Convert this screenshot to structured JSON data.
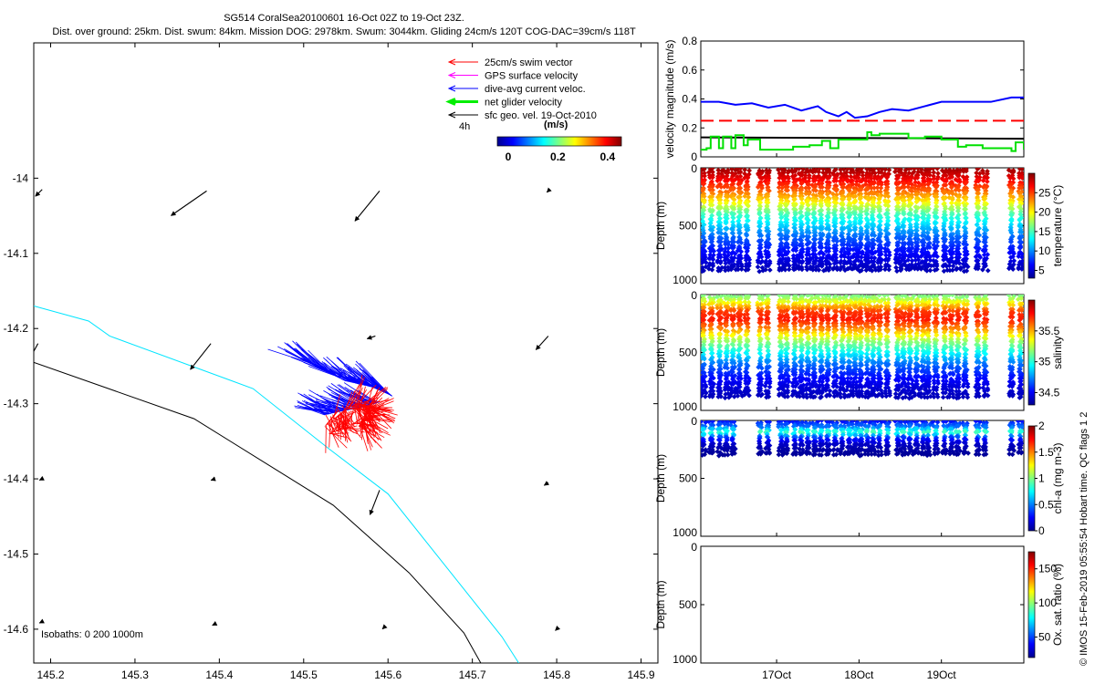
{
  "header": {
    "title": "SG514 CoralSea20100601 16-Oct 02Z to 19-Oct 23Z.",
    "subtitle": "Dist. over ground: 25km. Dist. swum: 84km. Mission DOG: 2978km. Swum: 3044km. Gliding 24cm/s 120T COG-DAC=39cm/s 118T"
  },
  "copyright": "© IMOS 15-Feb-2019 05:55:54 Hobart time. QC flags 1  2",
  "map": {
    "legend": [
      {
        "label": "25cm/s swim vector",
        "color": "#ff0000"
      },
      {
        "label": "GPS surface velocity",
        "color": "#ff00ff"
      },
      {
        "label": "dive-avg current veloc.",
        "color": "#0000ff"
      },
      {
        "label": "net glider velocity",
        "color": "#00ee00"
      },
      {
        "label": "sfc geo. vel. 19-Oct-2010",
        "color": "#000000"
      }
    ],
    "time_label": "4h",
    "colorbar": {
      "unit": "(m/s)",
      "ticks": [
        0,
        0.2,
        0.4
      ],
      "tick_labels": [
        "0",
        "0.2",
        "0.4"
      ],
      "range": [
        0,
        0.5
      ]
    },
    "isobaths_label": "Isobaths: 0   200  1000m",
    "isobath_colors": {
      "200": "#00e5ff",
      "1000": "#000000"
    },
    "xlim": [
      145.18,
      145.92
    ],
    "ylim": [
      -14.645,
      -13.82
    ],
    "xticks": [
      145.2,
      145.3,
      145.4,
      145.5,
      145.6,
      145.7,
      145.8,
      145.9
    ],
    "xtick_labels": [
      "145.2",
      "145.3",
      "145.4",
      "145.5",
      "145.6",
      "145.7",
      "145.8",
      "145.9"
    ],
    "yticks": [
      -14.0,
      -14.1,
      -14.2,
      -14.3,
      -14.4,
      -14.5,
      -14.6
    ],
    "ytick_labels": [
      "-14",
      "-14.1",
      "-14.2",
      "-14.3",
      "-14.4",
      "-14.5",
      "-14.6"
    ],
    "isobath_200m": [
      [
        145.18,
        -14.17
      ],
      [
        145.245,
        -14.19
      ],
      [
        145.27,
        -14.21
      ],
      [
        145.44,
        -14.28
      ],
      [
        145.53,
        -14.36
      ],
      [
        145.6,
        -14.42
      ],
      [
        145.735,
        -14.61
      ],
      [
        145.755,
        -14.645
      ]
    ],
    "isobath_1000m": [
      [
        145.18,
        -14.245
      ],
      [
        145.37,
        -14.32
      ],
      [
        145.535,
        -14.435
      ],
      [
        145.625,
        -14.525
      ],
      [
        145.69,
        -14.605
      ],
      [
        145.71,
        -14.645
      ]
    ],
    "geo_vectors": [
      {
        "x": 145.19,
        "y": -14.015,
        "u": -0.05,
        "v": -0.05
      },
      {
        "x": 145.385,
        "y": -14.017,
        "u": -0.26,
        "v": -0.18
      },
      {
        "x": 145.59,
        "y": -14.017,
        "u": -0.18,
        "v": -0.22
      },
      {
        "x": 145.79,
        "y": -14.017,
        "u": -0.01,
        "v": -0.01
      },
      {
        "x": 145.185,
        "y": -14.22,
        "u": -0.12,
        "v": -0.22
      },
      {
        "x": 145.39,
        "y": -14.22,
        "u": -0.15,
        "v": -0.19
      },
      {
        "x": 145.585,
        "y": -14.21,
        "u": -0.06,
        "v": -0.02
      },
      {
        "x": 145.79,
        "y": -14.21,
        "u": -0.09,
        "v": -0.1
      },
      {
        "x": 145.19,
        "y": -14.4,
        "u": -0.02,
        "v": -0.01
      },
      {
        "x": 145.395,
        "y": -14.4,
        "u": -0.03,
        "v": -0.01
      },
      {
        "x": 145.59,
        "y": -14.415,
        "u": -0.07,
        "v": -0.18
      },
      {
        "x": 145.79,
        "y": -14.405,
        "u": -0.03,
        "v": -0.02
      },
      {
        "x": 145.19,
        "y": -14.59,
        "u": -0.02,
        "v": -0.01
      },
      {
        "x": 145.395,
        "y": -14.593,
        "u": -0.02,
        "v": -0.01
      },
      {
        "x": 145.595,
        "y": -14.598,
        "u": -0.01,
        "v": -0.01
      },
      {
        "x": 145.8,
        "y": -14.6,
        "u": -0.01,
        "v": -0.01
      }
    ],
    "track_upper": [
      [
        145.505,
        -14.245
      ],
      [
        145.55,
        -14.27
      ],
      [
        145.59,
        -14.28
      ],
      [
        145.605,
        -14.29
      ]
    ],
    "track_lower": [
      [
        145.525,
        -14.315
      ],
      [
        145.545,
        -14.31
      ],
      [
        145.57,
        -14.305
      ],
      [
        145.59,
        -14.298
      ]
    ],
    "swim_cluster": [
      [
        145.525,
        -14.33
      ],
      [
        145.56,
        -14.3
      ],
      [
        145.58,
        -14.305
      ],
      [
        145.565,
        -14.33
      ]
    ]
  },
  "chart_data": [
    {
      "type": "line",
      "ylabel": "velocity magnitude (m/s)",
      "ylim": [
        0,
        0.8
      ],
      "yticks": [
        0,
        0.2,
        0.4,
        0.6,
        0.8
      ],
      "ytick_labels": [
        "0",
        "0.2",
        "0.4",
        "0.6",
        "0.8"
      ],
      "xlim": [
        16.08,
        20.0
      ],
      "series": [
        {
          "color": "#0000ff",
          "style": "solid",
          "x": [
            16.08,
            16.3,
            16.5,
            16.7,
            16.9,
            17.1,
            17.3,
            17.5,
            17.6,
            17.75,
            17.85,
            17.95,
            18.1,
            18.25,
            18.4,
            18.6,
            18.8,
            19.0,
            19.3,
            19.6,
            19.85,
            20.0
          ],
          "y": [
            0.38,
            0.38,
            0.36,
            0.37,
            0.34,
            0.36,
            0.32,
            0.35,
            0.31,
            0.28,
            0.31,
            0.27,
            0.28,
            0.31,
            0.33,
            0.32,
            0.35,
            0.38,
            0.38,
            0.38,
            0.41,
            0.41
          ]
        },
        {
          "color": "#ff0000",
          "style": "dashed",
          "x": [
            16.08,
            20.0
          ],
          "y": [
            0.25,
            0.25
          ]
        },
        {
          "color": "#000000",
          "style": "solid",
          "x": [
            16.08,
            20.0
          ],
          "y": [
            0.135,
            0.125
          ]
        },
        {
          "color": "#00e000",
          "style": "solid",
          "x": [
            16.08,
            16.15,
            16.2,
            16.3,
            16.35,
            16.45,
            16.5,
            16.6,
            16.65,
            16.8,
            17.0,
            17.2,
            17.4,
            17.55,
            17.65,
            17.75,
            17.9,
            18.1,
            18.15,
            18.25,
            18.4,
            18.6,
            18.8,
            19.0,
            19.2,
            19.3,
            19.5,
            19.7,
            19.85,
            19.9,
            20.0
          ],
          "y": [
            0.05,
            0.06,
            0.14,
            0.06,
            0.14,
            0.06,
            0.15,
            0.08,
            0.12,
            0.05,
            0.05,
            0.07,
            0.08,
            0.11,
            0.06,
            0.12,
            0.12,
            0.17,
            0.15,
            0.16,
            0.16,
            0.13,
            0.14,
            0.12,
            0.07,
            0.08,
            0.06,
            0.06,
            0.04,
            0.1,
            0.05
          ]
        }
      ]
    },
    {
      "type": "scatter",
      "variable": "temperature",
      "ylabel": "Depth (m)",
      "cbar_label": "temperature (°C)",
      "ylim": [
        1000,
        0
      ],
      "yticks": [
        0,
        500,
        1000
      ],
      "ytick_labels": [
        "0",
        "500",
        "1000"
      ],
      "cbar_range": [
        3,
        30
      ],
      "cbar_ticks": [
        5,
        10,
        15,
        20,
        25
      ],
      "cbar_tick_labels": [
        "5",
        "10",
        "15",
        "20",
        "25"
      ],
      "dive_times": [
        16.09,
        16.19,
        16.29,
        16.37,
        16.45,
        16.53,
        16.62,
        16.78,
        16.87,
        17.03,
        17.1,
        17.2,
        17.28,
        17.36,
        17.44,
        17.52,
        17.6,
        17.69,
        17.78,
        17.86,
        17.93,
        18.0,
        18.08,
        18.15,
        18.23,
        18.32,
        18.45,
        18.52,
        18.6,
        18.68,
        18.76,
        18.82,
        18.91,
        19.02,
        19.1,
        19.18,
        19.27,
        19.42,
        19.51,
        19.83,
        19.94
      ],
      "max_depth": 880,
      "profile": {
        "depth": [
          20,
          100,
          200,
          300,
          400,
          500,
          600,
          700,
          800,
          880
        ],
        "value": [
          29,
          27,
          24,
          20,
          15,
          12,
          9,
          7,
          5.5,
          4.5
        ]
      }
    },
    {
      "type": "scatter",
      "variable": "salinity",
      "ylabel": "Depth (m)",
      "cbar_label": "salinity",
      "ylim": [
        1000,
        0
      ],
      "yticks": [
        0,
        500,
        1000
      ],
      "ytick_labels": [
        "0",
        "500",
        "1000"
      ],
      "cbar_range": [
        34.3,
        36.0
      ],
      "cbar_ticks": [
        34.5,
        35,
        35.5
      ],
      "cbar_tick_labels": [
        "34.5",
        "35",
        "35.5"
      ],
      "dive_times": [
        16.09,
        16.19,
        16.29,
        16.37,
        16.45,
        16.53,
        16.62,
        16.78,
        16.87,
        17.03,
        17.1,
        17.2,
        17.28,
        17.36,
        17.44,
        17.52,
        17.6,
        17.69,
        17.78,
        17.86,
        17.93,
        18.0,
        18.08,
        18.15,
        18.23,
        18.32,
        18.45,
        18.52,
        18.6,
        18.68,
        18.76,
        18.82,
        18.91,
        19.02,
        19.1,
        19.18,
        19.27,
        19.42,
        19.51,
        19.83,
        19.94
      ],
      "max_depth": 880,
      "profile": {
        "depth": [
          20,
          80,
          150,
          220,
          300,
          400,
          500,
          600,
          700,
          800,
          880
        ],
        "value": [
          35.15,
          35.4,
          35.7,
          35.75,
          35.55,
          35.2,
          34.95,
          34.7,
          34.55,
          34.45,
          34.4
        ]
      }
    },
    {
      "type": "scatter",
      "variable": "chl-a",
      "ylabel": "Depth (m)",
      "cbar_label": "chl-a (mg m-3)",
      "ylim": [
        1000,
        0
      ],
      "yticks": [
        0,
        500,
        1000
      ],
      "ytick_labels": [
        "0",
        "500",
        "1000"
      ],
      "cbar_range": [
        0,
        2
      ],
      "cbar_ticks": [
        0,
        0.5,
        1,
        1.5,
        2
      ],
      "cbar_tick_labels": [
        "0",
        "0.5",
        "1",
        "1.5",
        "2"
      ],
      "dive_times": [
        16.09,
        16.19,
        16.29,
        16.37,
        16.45,
        16.78,
        16.87,
        17.03,
        17.1,
        17.2,
        17.28,
        17.36,
        17.44,
        17.52,
        17.6,
        17.69,
        17.78,
        17.86,
        17.93,
        18.0,
        18.08,
        18.15,
        18.23,
        18.32,
        18.45,
        18.52,
        18.6,
        18.68,
        18.76,
        18.82,
        18.91,
        19.02,
        19.1,
        19.18,
        19.27,
        19.42,
        19.51,
        19.83,
        19.94
      ],
      "max_depth": 290,
      "profile": {
        "depth": [
          0,
          60,
          100,
          150,
          200,
          250,
          290
        ],
        "value": [
          0.25,
          0.5,
          0.9,
          0.35,
          0.15,
          0.08,
          0.05
        ]
      }
    },
    {
      "type": "scatter",
      "variable": "oxygen",
      "ylabel": "Depth (m)",
      "cbar_label": "Ox. sat. ratio (%)",
      "ylim": [
        1000,
        0
      ],
      "yticks": [
        0,
        500,
        1000
      ],
      "ytick_labels": [
        "0",
        "500",
        "1000"
      ],
      "cbar_range": [
        20,
        175
      ],
      "cbar_ticks": [
        50,
        100,
        150
      ],
      "cbar_tick_labels": [
        "50",
        "100",
        "150"
      ],
      "xticks": [
        17.0,
        18.0,
        19.0
      ],
      "xtick_labels": [
        "17Oct",
        "18Oct",
        "19Oct"
      ]
    }
  ]
}
